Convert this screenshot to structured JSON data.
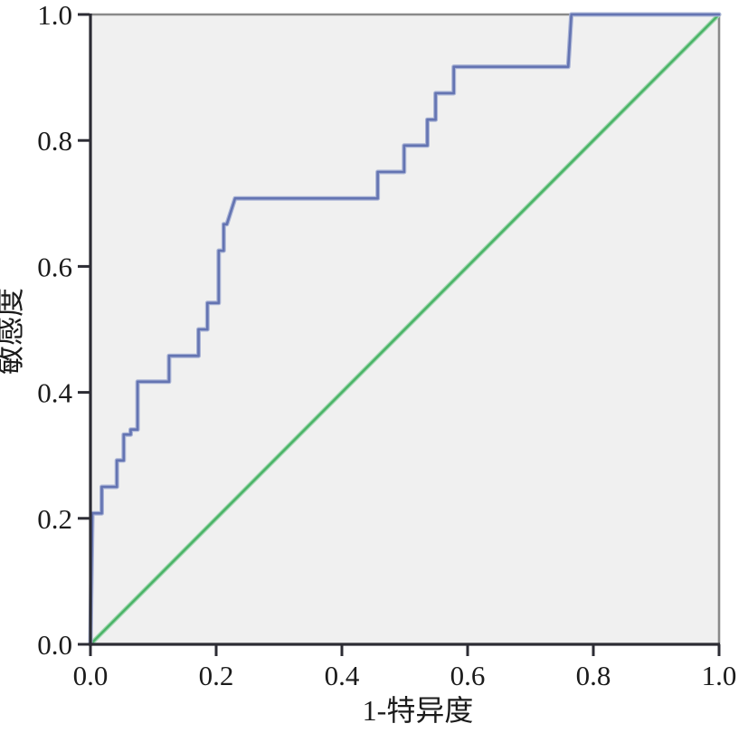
{
  "chart_data": {
    "type": "line",
    "subtype": "roc-curve",
    "title": "",
    "xlabel": "1-特异度",
    "ylabel": "敏感度",
    "xlim": [
      0.0,
      1.0
    ],
    "ylim": [
      0.0,
      1.0
    ],
    "x_tick_labels": [
      "0.0",
      "0.2",
      "0.4",
      "0.6",
      "0.8",
      "1.0"
    ],
    "y_tick_labels": [
      "0.0",
      "0.2",
      "0.4",
      "0.6",
      "0.8",
      "1.0"
    ],
    "x_tick_values": [
      0.0,
      0.2,
      0.4,
      0.6,
      0.8,
      1.0
    ],
    "y_tick_values": [
      0.0,
      0.2,
      0.4,
      0.6,
      0.8,
      1.0
    ],
    "grid": false,
    "legend": null,
    "plot_background": "#f0f0f0",
    "frame_color": "#8a8a8a",
    "axis_color": "#2c2c34",
    "text_color": "#1b1b1b",
    "series": [
      {
        "name": "roc-curve",
        "color": "#6474b2",
        "halo": "#aab4d6",
        "points": [
          [
            0.0,
            0.0
          ],
          [
            0.003,
            0.208
          ],
          [
            0.018,
            0.208
          ],
          [
            0.018,
            0.25
          ],
          [
            0.042,
            0.25
          ],
          [
            0.042,
            0.292
          ],
          [
            0.053,
            0.292
          ],
          [
            0.053,
            0.333
          ],
          [
            0.064,
            0.333
          ],
          [
            0.064,
            0.341
          ],
          [
            0.075,
            0.341
          ],
          [
            0.075,
            0.417
          ],
          [
            0.125,
            0.417
          ],
          [
            0.125,
            0.458
          ],
          [
            0.172,
            0.458
          ],
          [
            0.172,
            0.5
          ],
          [
            0.186,
            0.5
          ],
          [
            0.186,
            0.542
          ],
          [
            0.204,
            0.542
          ],
          [
            0.204,
            0.625
          ],
          [
            0.212,
            0.625
          ],
          [
            0.212,
            0.667
          ],
          [
            0.217,
            0.667
          ],
          [
            0.23,
            0.708
          ],
          [
            0.457,
            0.708
          ],
          [
            0.457,
            0.75
          ],
          [
            0.499,
            0.75
          ],
          [
            0.499,
            0.792
          ],
          [
            0.536,
            0.792
          ],
          [
            0.536,
            0.833
          ],
          [
            0.549,
            0.833
          ],
          [
            0.549,
            0.875
          ],
          [
            0.578,
            0.875
          ],
          [
            0.578,
            0.917
          ],
          [
            0.76,
            0.917
          ],
          [
            0.765,
            1.0
          ],
          [
            1.0,
            1.0
          ]
        ]
      },
      {
        "name": "reference-line",
        "color": "#4cb468",
        "halo": "#a5d9b4",
        "points": [
          [
            0.0,
            0.0
          ],
          [
            1.0,
            1.0
          ]
        ]
      }
    ]
  }
}
